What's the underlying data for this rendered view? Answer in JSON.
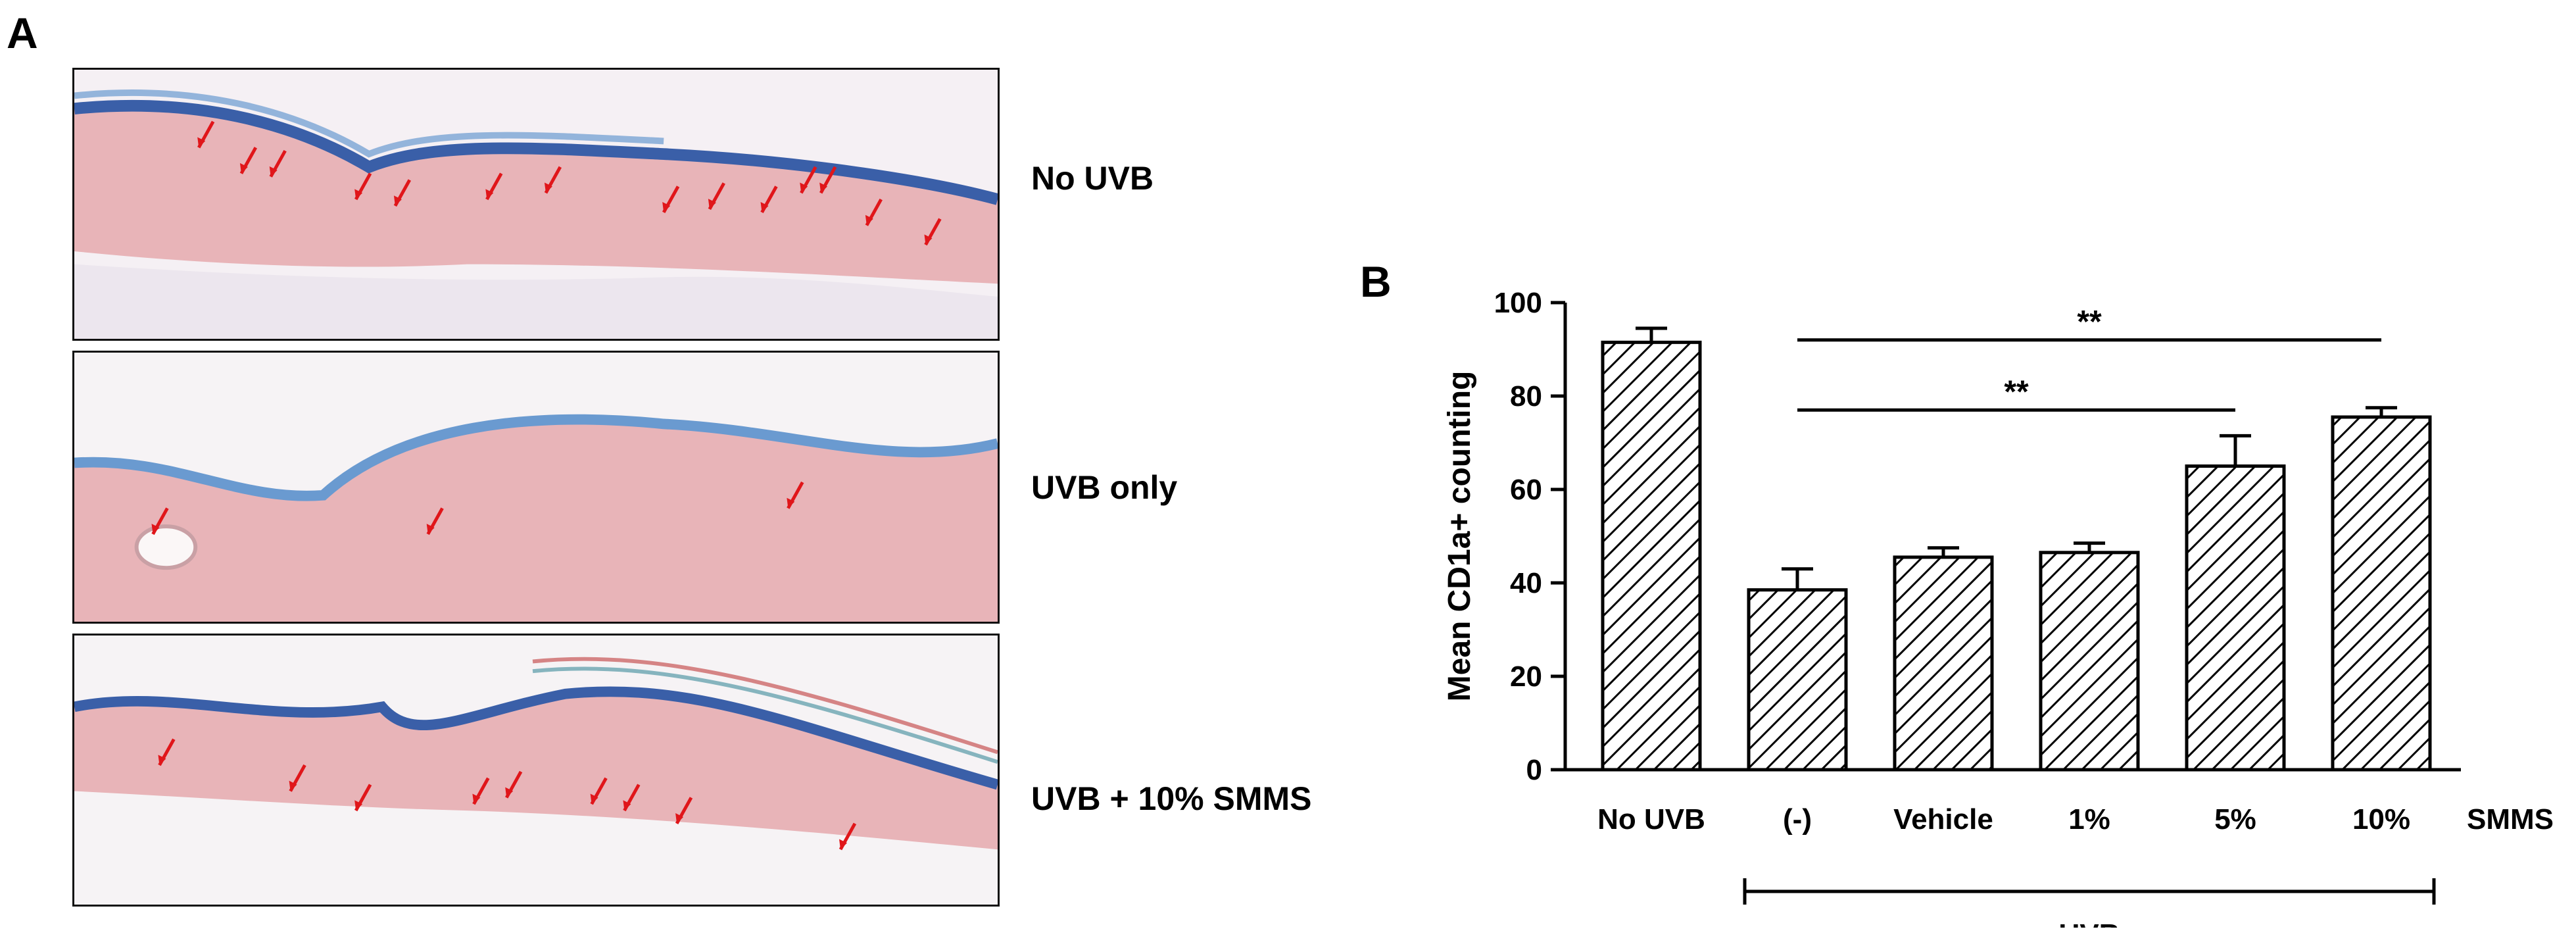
{
  "panel_a": {
    "letter": "A",
    "images": [
      {
        "label": "No UVB"
      },
      {
        "label": "UVB only"
      },
      {
        "label": "UVB + 10% SMMS"
      }
    ]
  },
  "panel_b": {
    "letter": "B"
  },
  "colors": {
    "bar_hatch": "#000000",
    "arrow": "#e0161a",
    "tissue": "#e8b0b0",
    "stain_blue": "#3a5fa8"
  },
  "chart_data": {
    "type": "bar",
    "categories": [
      "No UVB",
      "(-)",
      "Vehicle",
      "1%",
      "5%",
      "10%"
    ],
    "values": [
      91.5,
      38.5,
      45.5,
      46.5,
      65,
      75.5
    ],
    "errors": [
      3,
      4.5,
      2,
      2,
      6.5,
      2
    ],
    "ylabel": "Mean CD1a+ counting",
    "ylim": [
      0,
      100
    ],
    "yticks": [
      "0",
      "20",
      "40",
      "60",
      "80",
      "100"
    ],
    "x_extra_label": "SMMS",
    "group_label": "UVB",
    "group_span": [
      "(-)",
      "10%"
    ],
    "significance": [
      {
        "from": "(-)",
        "to": "10%",
        "label": "**"
      },
      {
        "from": "(-)",
        "to": "5%",
        "label": "**"
      }
    ],
    "bar_pattern": "diagonal-hatch",
    "grid": false
  }
}
